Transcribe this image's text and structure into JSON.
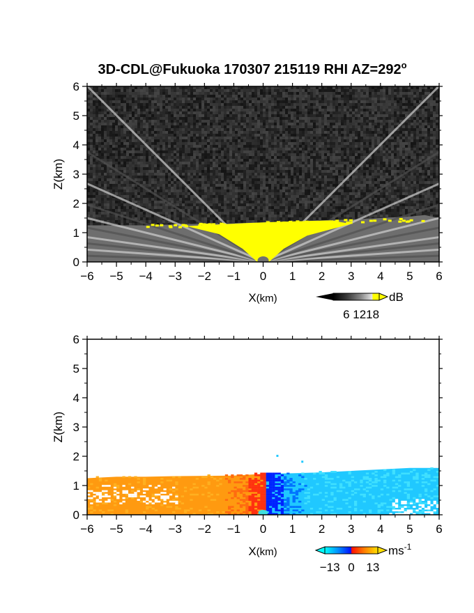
{
  "title": "3D-CDL@Fukuoka 170307 215119 RHI AZ=292",
  "title_superscript": "o",
  "chart_data": [
    {
      "type": "heatmap",
      "panel": "backscatter",
      "xlabel_main": "X",
      "xlabel_unit": "(km)",
      "ylabel": "Z(km)",
      "xlim": [
        -6,
        6
      ],
      "ylim": [
        0,
        6
      ],
      "xticks": [
        "-6",
        "-5",
        "-4",
        "-3",
        "-2",
        "-1",
        "0",
        "1",
        "2",
        "3",
        "4",
        "5",
        "6"
      ],
      "yticks": [
        "0",
        "1",
        "2",
        "3",
        "4",
        "5",
        "6"
      ],
      "colorbar": {
        "unit": "dB",
        "ticks": [
          "6",
          "12",
          "18"
        ],
        "range": [
          0,
          21
        ],
        "colors": [
          "#000000",
          "#2a2a2a",
          "#666666",
          "#aaaaaa",
          "#e8e8e8",
          "#ffff00"
        ]
      },
      "background_color": "#2b2b2b",
      "boundary_layer_top": {
        "x": [
          -6,
          -5,
          -4,
          -3,
          -2,
          -1,
          0,
          1,
          2,
          3,
          4,
          5,
          5.5,
          6
        ],
        "z": [
          1.25,
          1.25,
          1.25,
          1.28,
          1.3,
          1.32,
          1.35,
          1.38,
          1.42,
          1.45,
          1.5,
          1.55,
          1.6,
          1.5
        ]
      },
      "highlight_color": "#ffff00"
    },
    {
      "type": "heatmap",
      "panel": "doppler_velocity",
      "xlabel_main": "X",
      "xlabel_unit": "(km)",
      "ylabel": "Z(km)",
      "xlim": [
        -6,
        6
      ],
      "ylim": [
        0,
        6
      ],
      "xticks": [
        "-6",
        "-5",
        "-4",
        "-3",
        "-2",
        "-1",
        "0",
        "1",
        "2",
        "3",
        "4",
        "5",
        "6"
      ],
      "yticks": [
        "0",
        "1",
        "2",
        "3",
        "4",
        "5",
        "6"
      ],
      "colorbar": {
        "unit": "ms",
        "unit_superscript": "-1",
        "ticks": [
          "-13",
          "0",
          "13"
        ],
        "range": [
          -16,
          16
        ],
        "colors": [
          "#00ffff",
          "#0090ff",
          "#0020ff",
          "#ff2000",
          "#ff8000",
          "#ffd000"
        ]
      },
      "negative_side_color": "#ff9a10",
      "positive_side_color": "#20c8ff",
      "boundary_layer_top": {
        "x": [
          -6,
          -5,
          -4,
          -3,
          -2,
          -1,
          0,
          1,
          2,
          3,
          4,
          5,
          6
        ],
        "z": [
          1.25,
          1.3,
          1.3,
          1.32,
          1.33,
          1.34,
          1.4,
          1.42,
          1.45,
          1.5,
          1.55,
          1.6,
          1.6
        ]
      }
    }
  ]
}
